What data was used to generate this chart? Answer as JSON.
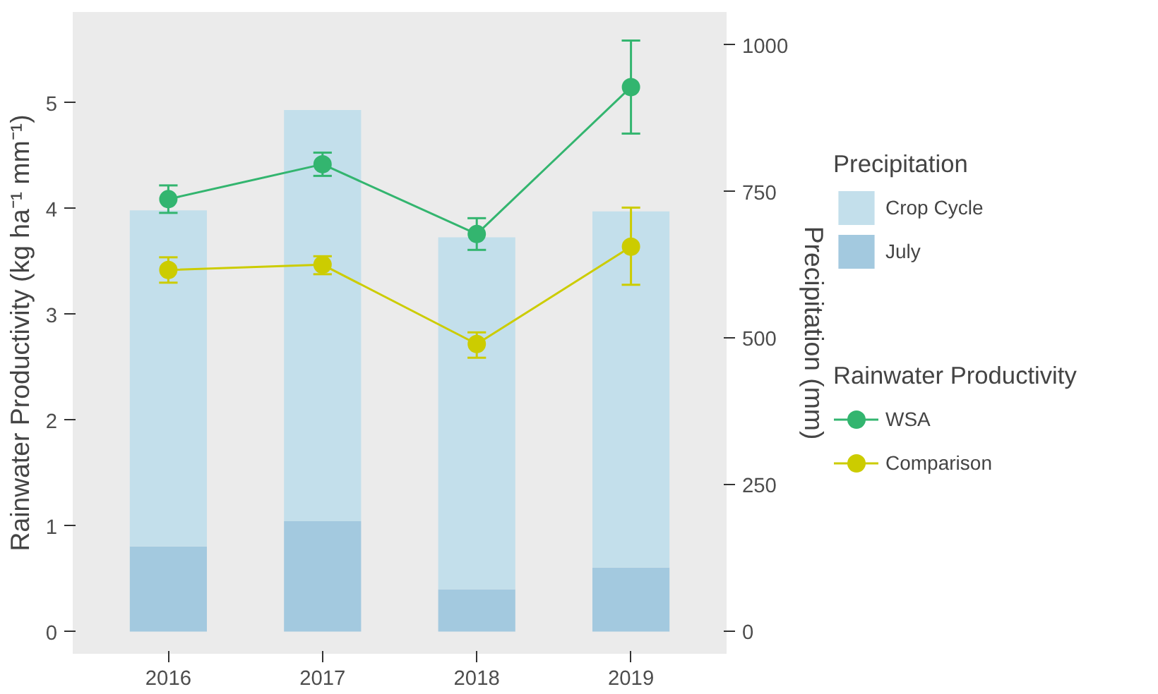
{
  "chart_data": {
    "type": "line",
    "categories": [
      "2016",
      "2017",
      "2018",
      "2019"
    ],
    "ylabel": "Rainwater Productivity (kg ha⁻¹ mm⁻¹)",
    "y2label": "Precipitation (mm)",
    "ylim": [
      -0.21,
      5.86
    ],
    "yticks": [
      0,
      1,
      2,
      3,
      4,
      5
    ],
    "y2lim": [
      -38,
      1056
    ],
    "y2ticks": [
      0,
      250,
      500,
      750,
      1000
    ],
    "stacked": true,
    "grid": false,
    "legend": "right",
    "marker": "circle",
    "legend_title": [
      "Precipitation",
      "Rainwater Productivity"
    ],
    "series": [
      {
        "name": "July",
        "type": "bar",
        "axis": "y2",
        "color": "#a3c9df",
        "values": [
          145,
          188,
          72,
          109
        ]
      },
      {
        "name": "Crop Cycle",
        "type": "bar",
        "axis": "y2",
        "color": "#c3dfeb",
        "values": [
          573,
          701,
          600,
          607
        ]
      },
      {
        "name": "WSA",
        "color": "#33b56f",
        "values": [
          4.09,
          4.42,
          3.76,
          5.15
        ],
        "errors": [
          [
            3.96,
            4.22
          ],
          [
            4.31,
            4.53
          ],
          [
            3.61,
            3.91
          ],
          [
            4.71,
            5.59
          ]
        ]
      },
      {
        "name": "Comparison",
        "color": "#cccc00",
        "values": [
          3.42,
          3.47,
          2.72,
          3.64
        ],
        "errors": [
          [
            3.3,
            3.54
          ],
          [
            3.38,
            3.55
          ],
          [
            2.59,
            2.83
          ],
          [
            3.28,
            4.01
          ]
        ]
      }
    ]
  }
}
